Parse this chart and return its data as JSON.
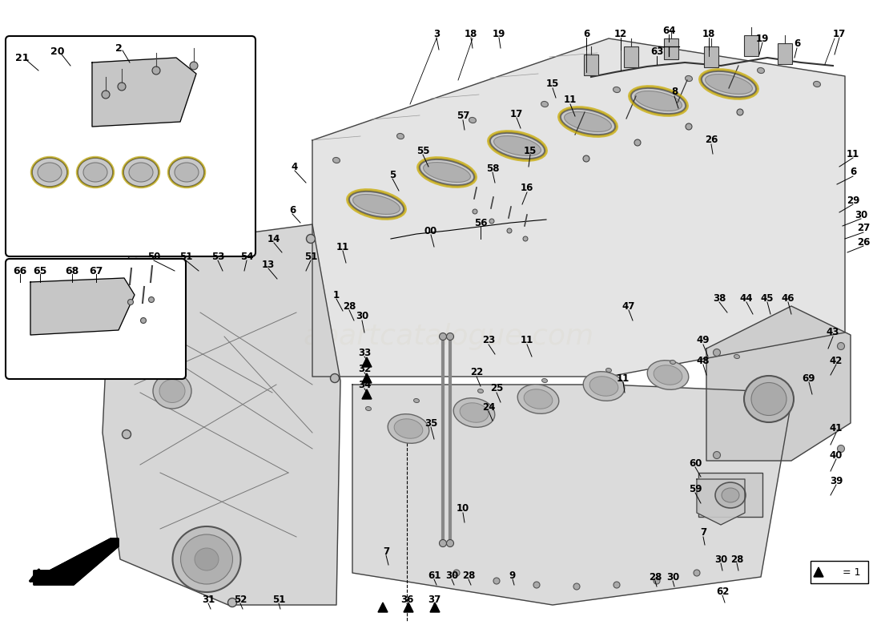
{
  "bg_color": "#ffffff",
  "watermark_color": "#d4c89a",
  "watermark_text": "apartcatalogue.com"
}
